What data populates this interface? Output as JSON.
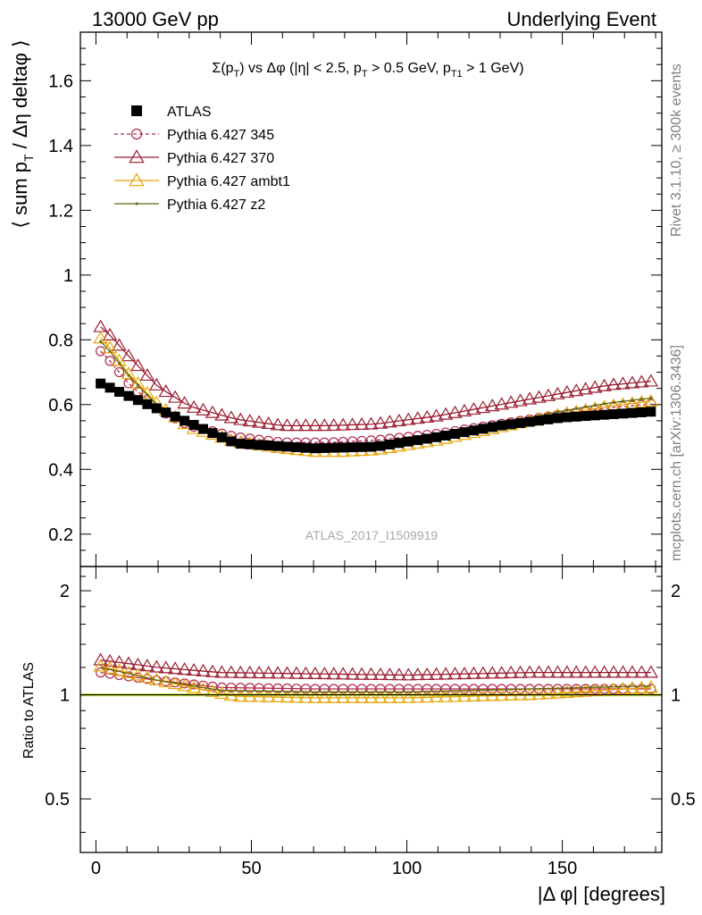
{
  "header": {
    "energy_label": "13000 GeV pp",
    "process_label": "Underlying Event",
    "rivet_label": "Rivet 3.1.10, ≥ 300k events",
    "mcplots_label": "mcplots.cern.ch [arXiv:1306.3436]",
    "analysis_id": "ATLAS_2017_I1509919"
  },
  "chart_data": [
    {
      "type": "line",
      "title": "Σ(pT) vs Δφ (|η| < 2.5, pT > 0.5 GeV, pT1 > 1 GeV)",
      "title_parts": {
        "p1": "Σ(p",
        "s1": "T",
        "p2": ") vs Δφ (|η| < 2.5, p",
        "s2": "T",
        "p3": " > 0.5 GeV, p",
        "s3": "T1",
        "p4": " > 1 GeV)"
      },
      "ylabel": "⟨ sum pT / Δη deltaφ ⟩",
      "ylabel_parts": {
        "a": "⟨ sum p",
        "sub": "T",
        "b": " / Δη deltaφ ⟩"
      },
      "xlim": [
        -5,
        182
      ],
      "ylim": [
        0.1,
        1.75
      ],
      "yticks": [
        0.2,
        0.4,
        0.6,
        0.8,
        1,
        1.2,
        1.4,
        1.6
      ],
      "ytick_labels": [
        "0.2",
        "0.4",
        "0.6",
        "0.8",
        "1",
        "1.2",
        "1.4",
        "1.6"
      ],
      "legend_position": "top-left",
      "series": [
        {
          "name": "ATLAS",
          "color": "#000000",
          "marker": "square",
          "key_x": [
            1.5,
            45,
            70,
            90,
            110,
            130,
            150,
            178.5
          ],
          "key_y": [
            0.665,
            0.48,
            0.465,
            0.47,
            0.5,
            0.535,
            0.56,
            0.578
          ]
        },
        {
          "name": "Pythia 6.427 345",
          "color": "#b02a4a",
          "marker": "circle",
          "dashed": true,
          "key_x": [
            1.5,
            5,
            10,
            20,
            30,
            45,
            60,
            75,
            90,
            110,
            130,
            150,
            165,
            178.5
          ],
          "key_y": [
            0.765,
            0.73,
            0.67,
            0.585,
            0.535,
            0.5,
            0.483,
            0.483,
            0.49,
            0.51,
            0.54,
            0.57,
            0.59,
            0.602
          ]
        },
        {
          "name": "Pythia 6.427 370",
          "color": "#9b1c30",
          "marker": "triangle",
          "key_x": [
            1.5,
            5,
            10,
            20,
            30,
            45,
            60,
            75,
            90,
            110,
            130,
            150,
            165,
            178.5
          ],
          "key_y": [
            0.84,
            0.81,
            0.755,
            0.655,
            0.595,
            0.555,
            0.535,
            0.535,
            0.54,
            0.565,
            0.6,
            0.635,
            0.66,
            0.672
          ]
        },
        {
          "name": "Pythia 6.427 ambt1",
          "color": "#e8a50a",
          "marker": "triangle",
          "key_x": [
            1.5,
            5,
            10,
            20,
            30,
            45,
            60,
            70,
            80,
            90,
            110,
            130,
            150,
            165,
            178.5
          ],
          "key_y": [
            0.805,
            0.77,
            0.7,
            0.6,
            0.53,
            0.485,
            0.465,
            0.455,
            0.455,
            0.46,
            0.49,
            0.53,
            0.57,
            0.595,
            0.61
          ]
        },
        {
          "name": "Pythia 6.427 z2",
          "color": "#5e6b10",
          "marker": "dot",
          "key_x": [
            1.5,
            5,
            10,
            20,
            30,
            45,
            60,
            75,
            90,
            110,
            130,
            150,
            165,
            178.5
          ],
          "key_y": [
            0.795,
            0.76,
            0.695,
            0.595,
            0.53,
            0.485,
            0.47,
            0.465,
            0.47,
            0.5,
            0.54,
            0.58,
            0.605,
            0.62
          ]
        }
      ]
    },
    {
      "type": "line",
      "ylabel": "Ratio to ATLAS",
      "xlabel": "|Δ φ| [degrees]",
      "xlim": [
        -5,
        182
      ],
      "ylim": [
        0.35,
        2.35
      ],
      "yscale": "log",
      "yticks": [
        0.5,
        1,
        2
      ],
      "ytick_labels": [
        "0.5",
        "1",
        "2"
      ],
      "xticks": [
        0,
        50,
        100,
        150
      ],
      "xtick_labels": [
        "0",
        "50",
        "100",
        "150"
      ],
      "band_color": "#cde64a",
      "series": [
        {
          "name": "Pythia 6.427 345",
          "color": "#b02a4a",
          "marker": "circle",
          "key_x": [
            1.5,
            20,
            40,
            70,
            100,
            140,
            178.5
          ],
          "key_y": [
            1.16,
            1.1,
            1.05,
            1.04,
            1.04,
            1.04,
            1.04
          ]
        },
        {
          "name": "Pythia 6.427 370",
          "color": "#9b1c30",
          "marker": "triangle",
          "key_x": [
            1.5,
            20,
            40,
            70,
            100,
            140,
            178.5
          ],
          "key_y": [
            1.26,
            1.2,
            1.16,
            1.15,
            1.14,
            1.16,
            1.16
          ]
        },
        {
          "name": "Pythia 6.427 ambt1",
          "color": "#e8a50a",
          "marker": "triangle",
          "key_x": [
            1.5,
            20,
            40,
            45,
            70,
            100,
            140,
            178.5
          ],
          "key_y": [
            1.21,
            1.1,
            1.01,
            0.99,
            0.98,
            0.98,
            1.0,
            1.05
          ]
        },
        {
          "name": "Pythia 6.427 z2",
          "color": "#5e6b10",
          "marker": "dot",
          "key_x": [
            1.5,
            20,
            40,
            70,
            100,
            140,
            178.5
          ],
          "key_y": [
            1.2,
            1.1,
            1.03,
            1.02,
            1.02,
            1.04,
            1.06
          ]
        }
      ]
    }
  ]
}
